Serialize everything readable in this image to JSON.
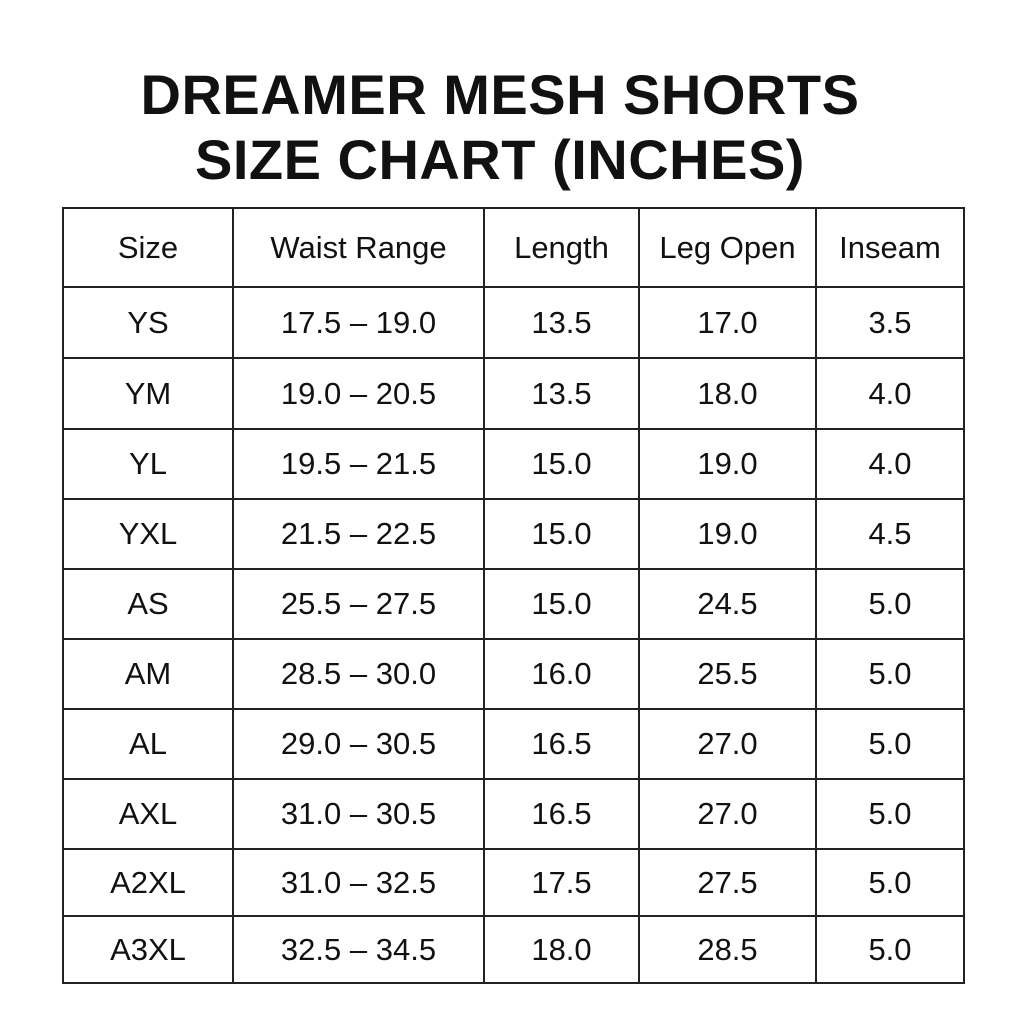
{
  "title": {
    "line1": "DREAMER MESH SHORTS",
    "line2": "SIZE CHART (INCHES)"
  },
  "table": {
    "headers": [
      "Size",
      "Waist Range",
      "Length",
      "Leg Open",
      "Inseam"
    ],
    "rows": [
      [
        "YS",
        "17.5 – 19.0",
        "13.5",
        "17.0",
        "3.5"
      ],
      [
        "YM",
        "19.0 – 20.5",
        "13.5",
        "18.0",
        "4.0"
      ],
      [
        "YL",
        "19.5 – 21.5",
        "15.0",
        "19.0",
        "4.0"
      ],
      [
        "YXL",
        "21.5 – 22.5",
        "15.0",
        "19.0",
        "4.5"
      ],
      [
        "AS",
        "25.5 – 27.5",
        "15.0",
        "24.5",
        "5.0"
      ],
      [
        "AM",
        "28.5 – 30.0",
        "16.0",
        "25.5",
        "5.0"
      ],
      [
        "AL",
        "29.0 – 30.5",
        "16.5",
        "27.0",
        "5.0"
      ],
      [
        "AXL",
        "31.0 – 30.5",
        "16.5",
        "27.0",
        "5.0"
      ],
      [
        "A2XL",
        "31.0 – 32.5",
        "17.5",
        "27.5",
        "5.0"
      ],
      [
        "A3XL",
        "32.5 – 34.5",
        "18.0",
        "28.5",
        "5.0"
      ]
    ]
  }
}
